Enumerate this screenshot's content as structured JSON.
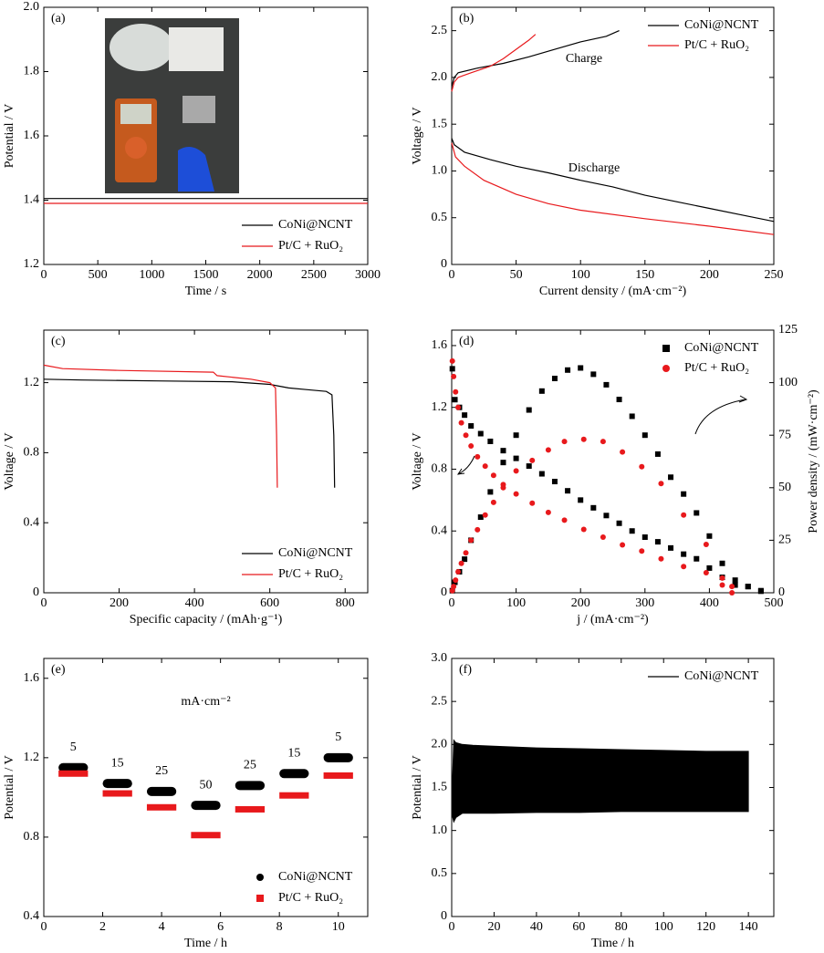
{
  "chart_data": [
    {
      "type": "line",
      "label": "(a)",
      "xlabel": "Time / s",
      "ylabel": "Potential / V",
      "xlim": [
        0,
        3000
      ],
      "xticks": [
        0,
        500,
        1000,
        1500,
        2000,
        2500,
        3000
      ],
      "ylim": [
        1.2,
        2.0
      ],
      "yticks": [
        1.2,
        1.4,
        1.6,
        1.8,
        {
          "value": 2,
          "label": "2.0"
        }
      ],
      "legend": "lower right",
      "series": [
        {
          "name": "CoNi@NCNT",
          "color": "#000000",
          "x": [
            0,
            500,
            1000,
            1500,
            2000,
            2500,
            3000
          ],
          "values": [
            1.405,
            1.405,
            1.405,
            1.405,
            1.405,
            1.405,
            1.405
          ]
        },
        {
          "name": "Pt/C + RuO₂",
          "color": "#e8191c",
          "x": [
            0,
            500,
            1000,
            1500,
            2000,
            2500,
            3000
          ],
          "values": [
            1.39,
            1.39,
            1.39,
            1.39,
            1.39,
            1.39,
            1.39
          ]
        }
      ]
    },
    {
      "type": "line",
      "label": "(b)",
      "xlabel": "Current density / (mA·cm⁻²)",
      "ylabel": "Voltage / V",
      "xlim": [
        0,
        250
      ],
      "xticks": [
        0,
        50,
        100,
        150,
        200,
        250
      ],
      "ylim": [
        0,
        2.75
      ],
      "yticks": [
        0,
        0.5,
        {
          "value": 1,
          "label": "1.0"
        },
        1.5,
        {
          "value": 2,
          "label": "2.0"
        },
        2.5
      ],
      "legend": "upper right",
      "annotations": [
        "Charge",
        "Discharge"
      ],
      "series": [
        {
          "name": "CoNi@NCNT",
          "color": "#000000",
          "x": [
            0,
            2,
            5,
            20,
            40,
            60,
            80,
            100,
            120,
            130
          ],
          "values": [
            1.9,
            2.0,
            2.05,
            2.1,
            2.15,
            2.22,
            2.3,
            2.38,
            2.44,
            2.5
          ],
          "discharge_x": [
            0,
            2,
            10,
            30,
            50,
            75,
            100,
            125,
            150,
            175,
            200,
            225,
            250
          ],
          "discharge_values": [
            1.35,
            1.28,
            1.2,
            1.12,
            1.05,
            0.98,
            0.9,
            0.83,
            0.74,
            0.67,
            0.6,
            0.53,
            0.46
          ]
        },
        {
          "name": "Pt/C + RuO₂",
          "color": "#e8191c",
          "x": [
            0,
            2,
            5,
            15,
            30,
            40,
            50,
            60,
            65
          ],
          "values": [
            1.85,
            1.95,
            2.0,
            2.05,
            2.12,
            2.2,
            2.3,
            2.4,
            2.46
          ],
          "discharge_x": [
            0,
            3,
            10,
            25,
            50,
            75,
            100,
            150,
            200,
            250
          ],
          "discharge_values": [
            1.3,
            1.15,
            1.05,
            0.9,
            0.75,
            0.65,
            0.58,
            0.49,
            0.41,
            0.32
          ]
        }
      ]
    },
    {
      "type": "line",
      "label": "(c)",
      "xlabel": "Specific capacity / (mAh·g⁻¹)",
      "ylabel": "Voltage / V",
      "xlim": [
        0,
        860
      ],
      "xticks": [
        0,
        200,
        400,
        600,
        800
      ],
      "ylim": [
        0,
        1.5
      ],
      "yticks": [
        0,
        0.4,
        0.8,
        1.2
      ],
      "legend": "lower right",
      "series": [
        {
          "name": "CoNi@NCNT",
          "color": "#000000",
          "x": [
            0,
            100,
            300,
            500,
            600,
            650,
            700,
            750,
            765,
            770,
            772
          ],
          "values": [
            1.22,
            1.215,
            1.21,
            1.205,
            1.19,
            1.17,
            1.16,
            1.15,
            1.13,
            0.9,
            0.6
          ]
        },
        {
          "name": "Pt/C + RuO₂",
          "color": "#e8191c",
          "x": [
            0,
            50,
            200,
            450,
            460,
            550,
            600,
            615,
            618,
            620
          ],
          "values": [
            1.3,
            1.28,
            1.27,
            1.26,
            1.24,
            1.22,
            1.2,
            1.17,
            0.9,
            0.6
          ]
        }
      ]
    },
    {
      "type": "scatter",
      "label": "(d)",
      "xlabel": "j / (mA·cm⁻²)",
      "ylabel": "Voltage / V",
      "y2label": "Power density / (mW·cm⁻²)",
      "xlim": [
        0,
        500
      ],
      "xticks": [
        0,
        100,
        200,
        300,
        400,
        500
      ],
      "ylim": [
        0,
        1.7
      ],
      "yticks": [
        0,
        0.4,
        0.8,
        1.2,
        1.6
      ],
      "y2lim": [
        0,
        125
      ],
      "y2ticks": [
        0,
        25,
        50,
        75,
        100,
        125
      ],
      "legend": "upper right",
      "series": [
        {
          "name": "CoNi@NCNT",
          "color": "#000000",
          "marker": "square",
          "x": [
            1,
            5,
            12,
            20,
            30,
            45,
            60,
            80,
            100,
            120,
            140,
            160,
            180,
            200,
            220,
            240,
            260,
            280,
            300,
            320,
            340,
            360,
            380,
            400,
            420,
            440,
            460,
            480
          ],
          "values": [
            1.45,
            1.25,
            1.2,
            1.15,
            1.08,
            1.03,
            0.98,
            0.92,
            0.87,
            0.82,
            0.77,
            0.72,
            0.66,
            0.6,
            0.55,
            0.5,
            0.45,
            0.4,
            0.36,
            0.33,
            0.29,
            0.25,
            0.22,
            0.16,
            0.1,
            0.05,
            0.04,
            0.01
          ],
          "power_values": [
            1,
            5,
            10,
            16,
            25,
            36,
            48,
            62,
            75,
            87,
            96,
            102,
            106,
            107,
            104,
            99,
            92,
            84,
            75,
            66,
            55,
            47,
            38,
            27,
            14,
            6,
            3,
            1
          ]
        },
        {
          "name": "Pt/C + RuO₂",
          "color": "#e8191c",
          "marker": "circle",
          "x": [
            1,
            3,
            6,
            10,
            15,
            22,
            30,
            40,
            52,
            65,
            80,
            100,
            125,
            150,
            175,
            205,
            235,
            265,
            295,
            325,
            360,
            395,
            420,
            435
          ],
          "values": [
            1.5,
            1.4,
            1.3,
            1.2,
            1.1,
            1.02,
            0.95,
            0.88,
            0.82,
            0.76,
            0.7,
            0.64,
            0.58,
            0.52,
            0.47,
            0.41,
            0.36,
            0.31,
            0.27,
            0.22,
            0.17,
            0.13,
            0.05,
            0.0
          ],
          "power_values": [
            1,
            3,
            6,
            10,
            14,
            19,
            25,
            30,
            37,
            43,
            50,
            58,
            63,
            68,
            72,
            73,
            72,
            67,
            60,
            52,
            37,
            23,
            7,
            3
          ]
        }
      ]
    },
    {
      "type": "segments",
      "label": "(e)",
      "xlabel": "Time / h",
      "ylabel": "Potential / V",
      "xlim": [
        0,
        11
      ],
      "xticks": [
        0,
        2,
        4,
        6,
        8,
        10
      ],
      "ylim": [
        0.4,
        1.7
      ],
      "yticks": [
        0.4,
        0.8,
        1.2,
        1.6
      ],
      "legend": "lower right",
      "annotation": "mA·cm⁻²",
      "current_densities": [
        5,
        15,
        25,
        50,
        25,
        15,
        5
      ],
      "x_ranges": [
        [
          0.5,
          1.5
        ],
        [
          2,
          3
        ],
        [
          3.5,
          4.5
        ],
        [
          5,
          6
        ],
        [
          6.5,
          7.5
        ],
        [
          8,
          9
        ],
        [
          9.5,
          10.5
        ]
      ],
      "series": [
        {
          "name": "CoNi@NCNT",
          "color": "#000000",
          "marker": "circle",
          "values": [
            1.15,
            1.07,
            1.03,
            0.96,
            1.06,
            1.12,
            1.2
          ]
        },
        {
          "name": "Pt/C + RuO₂",
          "color": "#e8191c",
          "marker": "square",
          "values": [
            1.12,
            1.02,
            0.95,
            0.81,
            0.94,
            1.01,
            1.11
          ]
        }
      ]
    },
    {
      "type": "band",
      "label": "(f)",
      "xlabel": "Time / h",
      "ylabel": "Potential / V",
      "xlim": [
        0,
        152
      ],
      "xticks": [
        0,
        20,
        40,
        60,
        80,
        100,
        120,
        140
      ],
      "ylim": [
        0,
        3
      ],
      "yticks": [
        0,
        0.5,
        {
          "value": 1,
          "label": "1.0"
        },
        1.5,
        {
          "value": 2,
          "label": "2.0"
        },
        2.5,
        {
          "value": 3,
          "label": "3.0"
        }
      ],
      "legend": "upper right",
      "series": [
        {
          "name": "CoNi@NCNT",
          "color": "#000000",
          "x": [
            0,
            1,
            2,
            5,
            10,
            20,
            40,
            60,
            80,
            100,
            120,
            140
          ],
          "upper": [
            1.3,
            2.05,
            2.02,
            2.0,
            1.99,
            1.98,
            1.96,
            1.95,
            1.94,
            1.93,
            1.92,
            1.92
          ],
          "lower": [
            1.2,
            1.1,
            1.15,
            1.2,
            1.2,
            1.2,
            1.21,
            1.21,
            1.22,
            1.22,
            1.22,
            1.22
          ]
        }
      ]
    }
  ]
}
